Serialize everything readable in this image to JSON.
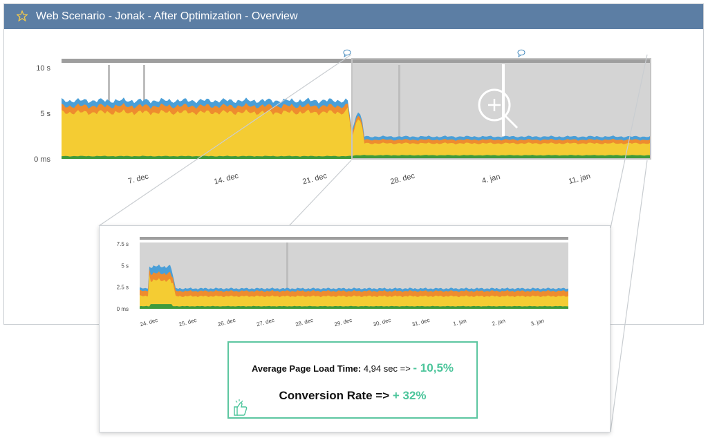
{
  "window": {
    "title": "Web Scenario - Jonak - After Optimization - Overview",
    "star_icon": "star-icon"
  },
  "colors": {
    "titlebar": "#5c7ea4",
    "blue_series": "#4a9fd8",
    "orange_series": "#ee8c2e",
    "yellow_series": "#f4cc33",
    "green_series": "#3f9a3c",
    "accent_green": "#4cc59b"
  },
  "main_chart": {
    "y_ticks": [
      "10 s",
      "5 s",
      "0 ms"
    ],
    "x_ticks": [
      "7. dec",
      "14. dec",
      "21. dec",
      "28. dec",
      "4. jan",
      "11. jan"
    ],
    "annotation_icon": "comment-icon",
    "zoom_icon": "zoom-in-icon"
  },
  "zoom_chart": {
    "y_ticks": [
      "7.5 s",
      "5 s",
      "2.5 s",
      "0 ms"
    ],
    "x_ticks": [
      "24. dec",
      "25. dec",
      "26. dec",
      "27. dec",
      "28. dec",
      "29. dec",
      "30. dec",
      "31. dec",
      "1. jan",
      "2. jan",
      "3. jan"
    ]
  },
  "result": {
    "load_time_label": "Average Page Load Time:",
    "load_time_value": "4,94 sec =>",
    "load_time_change": "- 10,5%",
    "conversion_label": "Conversion Rate =>",
    "conversion_change": "+ 32%",
    "thumb_icon": "thumbs-up-icon"
  }
}
